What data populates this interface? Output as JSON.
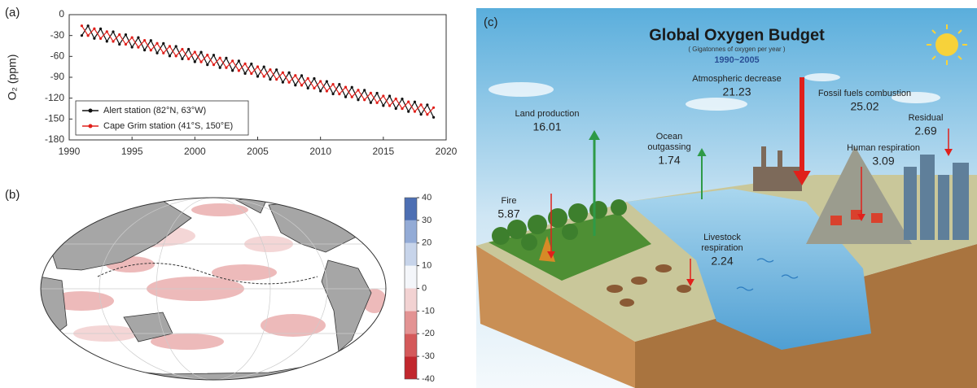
{
  "chart_data": [
    {
      "type": "line",
      "panel": "(a)",
      "ylabel": "O₂ (ppm)",
      "x": [
        1991,
        1991.5,
        1992,
        1992.5,
        1993,
        1993.5,
        1994,
        1994.5,
        1995,
        1995.5,
        1996,
        1996.5,
        1997,
        1997.5,
        1998,
        1998.5,
        1999,
        1999.5,
        2000,
        2000.5,
        2001,
        2001.5,
        2002,
        2002.5,
        2003,
        2003.5,
        2004,
        2004.5,
        2005,
        2005.5,
        2006,
        2006.5,
        2007,
        2007.5,
        2008,
        2008.5,
        2009,
        2009.5,
        2010,
        2010.5,
        2011,
        2011.5,
        2012,
        2012.5,
        2013,
        2013.5,
        2014,
        2014.5,
        2015,
        2015.5,
        2016,
        2016.5,
        2017,
        2017.5,
        2018,
        2018.5,
        2019
      ],
      "series": [
        {
          "name": "Alert station (82°N, 63°W)",
          "color": "#111111",
          "values": [
            -30,
            -16.1,
            -34.2,
            -20.3,
            -38.4,
            -24.5,
            -42.6,
            -28.7,
            -46.8,
            -32.9,
            -51,
            -37.1,
            -55.2,
            -41.3,
            -59.4,
            -45.5,
            -63.6,
            -49.7,
            -67.8,
            -53.9,
            -72,
            -58.1,
            -76.2,
            -62.3,
            -80.4,
            -66.5,
            -84.6,
            -70.7,
            -88.8,
            -74.9,
            -93,
            -79.1,
            -97.2,
            -83.3,
            -101.4,
            -87.5,
            -105.6,
            -91.7,
            -109.8,
            -95.9,
            -114,
            -100.1,
            -118.2,
            -104.3,
            -122.4,
            -108.5,
            -126.6,
            -112.7,
            -130.8,
            -116.9,
            -135,
            -121.1,
            -139.2,
            -125.3,
            -143.4,
            -129.5,
            -147.6
          ]
        },
        {
          "name": "Cape Grim station (41°S, 150°E)",
          "color": "#e0201b",
          "values": [
            -16,
            -30.1,
            -20.2,
            -34.3,
            -24.4,
            -38.5,
            -28.6,
            -42.7,
            -32.8,
            -46.9,
            -37,
            -51.1,
            -41.2,
            -55.3,
            -45.4,
            -59.5,
            -49.6,
            -63.7,
            -53.8,
            -67.9,
            -58,
            -72.1,
            -62.2,
            -76.3,
            -66.4,
            -80.5,
            -70.6,
            -84.7,
            -74.8,
            -88.9,
            -79,
            -93.1,
            -83.2,
            -97.3,
            -87.4,
            -101.5,
            -91.6,
            -105.7,
            -95.8,
            -109.9,
            -100,
            -114.1,
            -104.2,
            -118.3,
            -108.4,
            -122.5,
            -112.6,
            -126.7,
            -116.8,
            -130.9,
            -121,
            -135.1,
            -125.2,
            -139.3,
            -129.4,
            -143.5,
            -133.6
          ]
        }
      ],
      "xlim": [
        1990,
        2020
      ],
      "xticks": [
        1990,
        1995,
        2000,
        2005,
        2010,
        2015,
        2020
      ],
      "ylim": [
        -180,
        0
      ],
      "yticks": [
        0,
        -30,
        -60,
        -90,
        -120,
        -150,
        -180
      ],
      "legend": "lower left"
    },
    {
      "type": "map",
      "panel": "(b)",
      "colorbar": {
        "lim": [
          -40,
          40
        ],
        "ticks": [
          -40,
          -30,
          -20,
          -10,
          0,
          10,
          20,
          30,
          40
        ],
        "colors": [
          "#c1272d",
          "#d4595a",
          "#e39393",
          "#f2d2d2",
          "#f4f6fa",
          "#c7d4ea",
          "#93abd6",
          "#4d6fb3"
        ]
      }
    }
  ],
  "diagram": {
    "panel": "(c)",
    "title": "Global Oxygen Budget",
    "subtitle": "( Gigatonnes of oxygen per year )",
    "period": "1990~2005",
    "flows": [
      {
        "label": [
          "Land production"
        ],
        "value": 16.01,
        "color": "#2a55a0",
        "arrow_color": "#2e9a47"
      },
      {
        "label": [
          "Ocean",
          "outgassing"
        ],
        "value": 1.74,
        "color": "#2a55a0",
        "arrow_color": "#2e9a47"
      },
      {
        "label": [
          "Fire"
        ],
        "value": 5.87,
        "color": "#2a55a0",
        "arrow_color": "#e0201b"
      },
      {
        "label": [
          "Livestock",
          "respiration"
        ],
        "value": 2.24,
        "color": "#2a55a0",
        "arrow_color": "#e0201b"
      },
      {
        "label": [
          "Atmospheric decrease"
        ],
        "value": 21.23,
        "color": "#e0201b",
        "arrow_color": "#e0201b"
      },
      {
        "label": [
          "Fossil fuels combustion"
        ],
        "value": 25.02,
        "color": "#2a55a0"
      },
      {
        "label": [
          "Residual"
        ],
        "value": 2.69,
        "color": "#2a55a0",
        "arrow_color": "#e0201b"
      },
      {
        "label": [
          "Human respiration"
        ],
        "value": 3.09,
        "color": "#2a55a0",
        "arrow_color": "#e0201b"
      }
    ]
  }
}
